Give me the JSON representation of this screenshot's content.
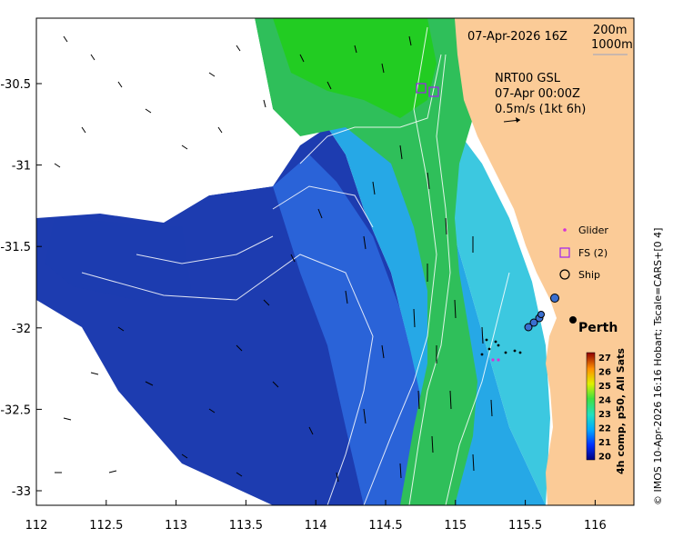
{
  "map": {
    "date_label": "07-Apr-2026 16Z",
    "contours": [
      "200m",
      "1000m"
    ],
    "current_source": "NRT00 GSL",
    "current_time": "07-Apr 00:00Z",
    "vector_scale": "0.5m/s (1kt 6h)",
    "city": "Perth",
    "colorbar_title": "4h comp, p50, All Sats",
    "colorbar_ticks": [
      "27",
      "26",
      "25",
      "24",
      "23",
      "22",
      "21",
      "20"
    ],
    "credit": "© IMOS 10-Apr-2026 16:16 Hobart; Tscale=CARS+[0 4]",
    "x_ticks": [
      "112",
      "112.5",
      "113",
      "113.5",
      "114",
      "114.5",
      "115",
      "115.5",
      "116"
    ],
    "y_ticks": [
      "-30.5",
      "-31",
      "-31.5",
      "-32",
      "-32.5",
      "-33"
    ],
    "legend": [
      {
        "label": "Glider",
        "icon": "glider-dot-icon"
      },
      {
        "label": "FS (2)",
        "icon": "square-icon"
      },
      {
        "label": "Ship",
        "icon": "circle-icon"
      }
    ],
    "colors": {
      "land": "#fbcb97",
      "glider": "#d633d6",
      "fs": "#a020f0",
      "sst_cold": "#1a2fa8",
      "sst_warm": "#22c922"
    }
  }
}
